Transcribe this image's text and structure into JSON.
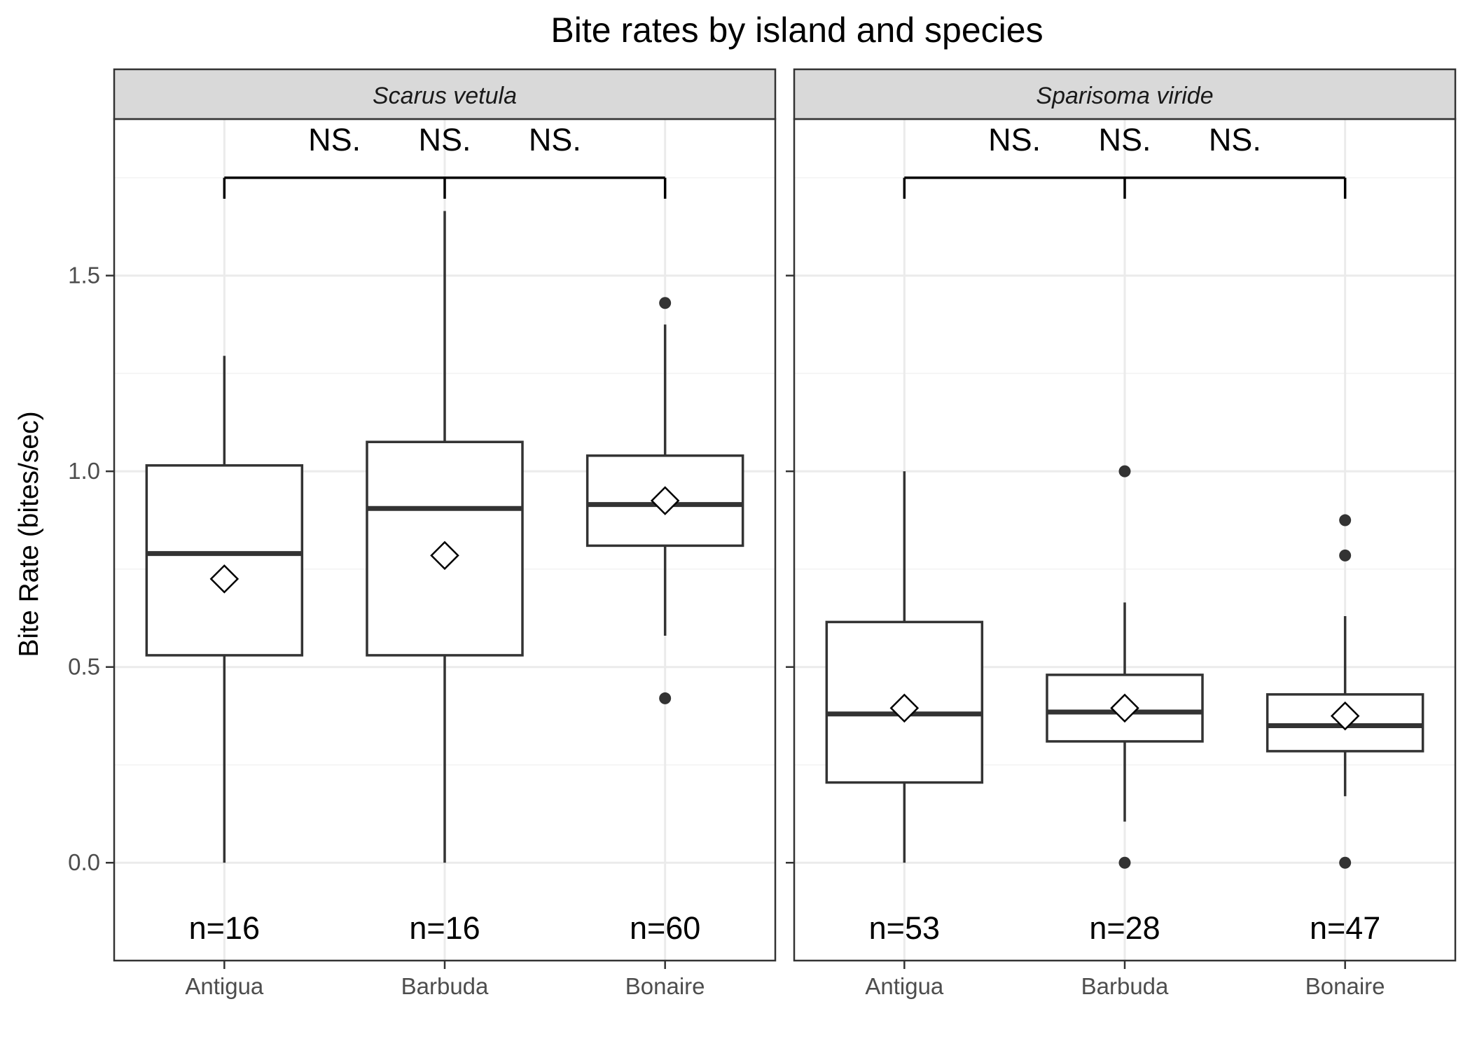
{
  "chart_data": {
    "type": "box",
    "title": "Bite rates by island and species",
    "xlabel": "",
    "ylabel": "Bite Rate (bites/sec)",
    "ylim": [
      -0.25,
      1.9
    ],
    "yticks": [
      0.0,
      0.5,
      1.0,
      1.5
    ],
    "ytick_labels": [
      "0.0",
      "0.5",
      "1.0",
      "1.5"
    ],
    "categories": [
      "Antigua",
      "Barbuda",
      "Bonaire"
    ],
    "grid": true,
    "legend": "none",
    "significance_y": 1.75,
    "panels": [
      {
        "strip": "Scarus vetula",
        "significance": [
          "NS.",
          "NS.",
          "NS."
        ],
        "boxes": [
          {
            "category": "Antigua",
            "whisker_low": 0.0,
            "q1": 0.53,
            "median": 0.79,
            "q3": 1.015,
            "whisker_high": 1.295,
            "mean": 0.725,
            "outliers": [],
            "n_label": "n=16"
          },
          {
            "category": "Barbuda",
            "whisker_low": 0.0,
            "q1": 0.53,
            "median": 0.905,
            "q3": 1.075,
            "whisker_high": 1.665,
            "mean": 0.785,
            "outliers": [],
            "n_label": "n=16"
          },
          {
            "category": "Bonaire",
            "whisker_low": 0.58,
            "q1": 0.81,
            "median": 0.915,
            "q3": 1.04,
            "whisker_high": 1.375,
            "mean": 0.925,
            "outliers": [
              1.43,
              0.42
            ],
            "n_label": "n=60"
          }
        ]
      },
      {
        "strip": "Sparisoma viride",
        "significance": [
          "NS.",
          "NS.",
          "NS."
        ],
        "boxes": [
          {
            "category": "Antigua",
            "whisker_low": 0.0,
            "q1": 0.205,
            "median": 0.38,
            "q3": 0.615,
            "whisker_high": 1.0,
            "mean": 0.395,
            "outliers": [],
            "n_label": "n=53"
          },
          {
            "category": "Barbuda",
            "whisker_low": 0.105,
            "q1": 0.31,
            "median": 0.385,
            "q3": 0.48,
            "whisker_high": 0.665,
            "mean": 0.395,
            "outliers": [
              1.0,
              0.0
            ],
            "n_label": "n=28"
          },
          {
            "category": "Bonaire",
            "whisker_low": 0.17,
            "q1": 0.285,
            "median": 0.35,
            "q3": 0.43,
            "whisker_high": 0.63,
            "mean": 0.375,
            "outliers": [
              0.875,
              0.785,
              0.0
            ],
            "n_label": "n=47"
          }
        ]
      }
    ]
  }
}
